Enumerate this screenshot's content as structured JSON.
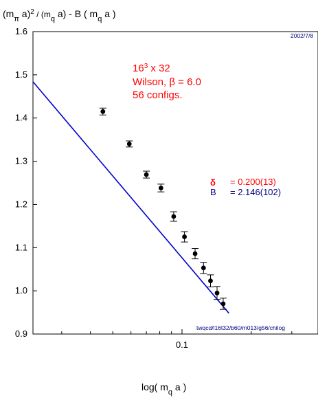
{
  "chart_data": {
    "type": "scatter",
    "title_parts": {
      "m": "(m",
      "pi": "π",
      "a": " a)",
      "sq": "2",
      "rest": " / (m",
      "q": "q",
      "a2": " a)  -  B ( m",
      "q2": "q",
      "end": " a )"
    },
    "xlabel_parts": {
      "pre": "log( m",
      "sub": "q",
      "post": " a )"
    },
    "ylim": [
      0.9,
      1.6
    ],
    "yticks": [
      "0.9",
      "1.0",
      "1.1",
      "1.2",
      "1.3",
      "1.4",
      "1.5",
      "1.6"
    ],
    "xscale": "log",
    "xlim": [
      0.0225,
      0.39
    ],
    "xticks": [
      "0.1"
    ],
    "points": [
      {
        "x": 0.0453,
        "y": 1.415,
        "err": 0.008
      },
      {
        "x": 0.059,
        "y": 1.34,
        "err": 0.007
      },
      {
        "x": 0.07,
        "y": 1.269,
        "err": 0.008
      },
      {
        "x": 0.081,
        "y": 1.238,
        "err": 0.009
      },
      {
        "x": 0.092,
        "y": 1.172,
        "err": 0.011
      },
      {
        "x": 0.1025,
        "y": 1.125,
        "err": 0.012
      },
      {
        "x": 0.114,
        "y": 1.086,
        "err": 0.012
      },
      {
        "x": 0.124,
        "y": 1.053,
        "err": 0.013
      },
      {
        "x": 0.133,
        "y": 1.023,
        "err": 0.014
      },
      {
        "x": 0.142,
        "y": 0.995,
        "err": 0.015
      },
      {
        "x": 0.151,
        "y": 0.97,
        "err": 0.013
      }
    ],
    "fit": {
      "x_start": 0.0225,
      "y_start": 1.484,
      "x_end": 0.16,
      "y_end": 0.948,
      "color": "#0000cc"
    },
    "annotations": {
      "lattice_base": "16",
      "lattice_exp": "3",
      "lattice_rest": " x 32",
      "wilson": "Wilson, β = 6.0",
      "configs": "56 configs.",
      "delta_symbol": "δ",
      "delta_value": "= 0.200(13)",
      "b_symbol": "B",
      "b_value": "= 2.146(102)",
      "date": "2002/7/8",
      "path": "twqcd/l16t32/b60/m013/g56/chilog"
    },
    "colors": {
      "annotation": "#ff0000",
      "fit_text": "#000080",
      "points": "#000000"
    }
  }
}
